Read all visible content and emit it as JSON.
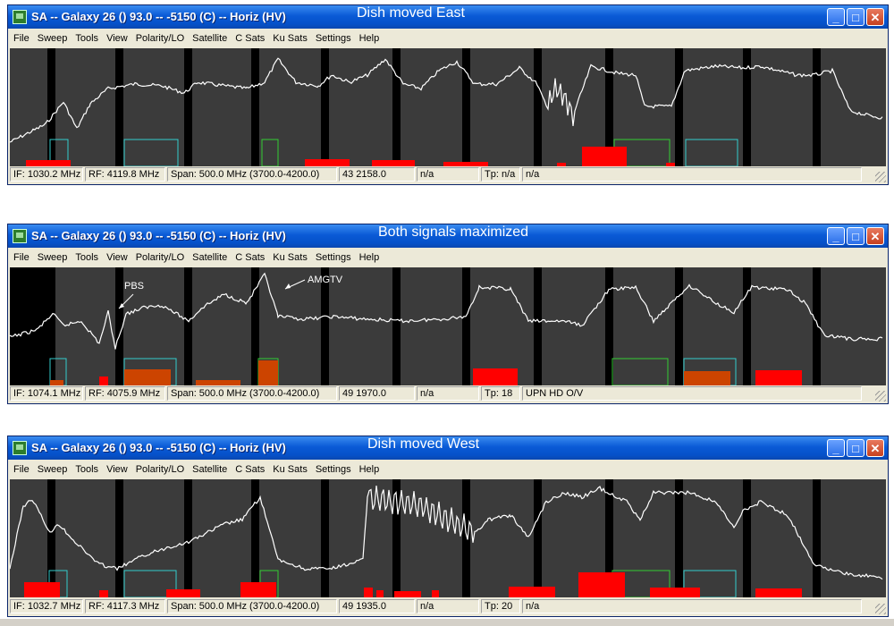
{
  "windows": [
    {
      "title": "SA -- Galaxy 26 () 93.0 -- -5150 (C) -- Horiz (HV)",
      "caption": "Dish moved East",
      "menu": [
        "File",
        "Sweep",
        "Tools",
        "View",
        "Polarity/LO",
        "Satellite",
        "C Sats",
        "Ku Sats",
        "Settings",
        "Help"
      ],
      "status": [
        "IF: 1030.2 MHz",
        "RF: 4119.8 MHz",
        "Span: 500.0 MHz (3700.0-4200.0)",
        "43 2158.0",
        "n/a",
        "Tp: n/a",
        "n/a"
      ],
      "annotations": []
    },
    {
      "title": "SA -- Galaxy 26 () 93.0 -- -5150 (C) -- Horiz (HV)",
      "caption": "Both signals maximized",
      "menu": [
        "File",
        "Sweep",
        "Tools",
        "View",
        "Polarity/LO",
        "Satellite",
        "C Sats",
        "Ku Sats",
        "Settings",
        "Help"
      ],
      "status": [
        "IF: 1074.1 MHz",
        "RF: 4075.9 MHz",
        "Span: 500.0 MHz (3700.0-4200.0)",
        "49 1970.0",
        "n/a",
        "Tp: 18",
        "UPN HD O/V"
      ],
      "annotations": [
        "PBS",
        "AMGTV"
      ]
    },
    {
      "title": "SA -- Galaxy 26 () 93.0 -- -5150 (C) -- Horiz (HV)",
      "caption": "Dish moved West",
      "menu": [
        "File",
        "Sweep",
        "Tools",
        "View",
        "Polarity/LO",
        "Satellite",
        "C Sats",
        "Ku Sats",
        "Settings",
        "Help"
      ],
      "status": [
        "IF: 1032.7 MHz",
        "RF: 4117.3 MHz",
        "Span: 500.0 MHz (3700.0-4200.0)",
        "49 1935.0",
        "n/a",
        "Tp: 20",
        "n/a"
      ],
      "annotations": []
    }
  ],
  "colors": {
    "plot_bg": "#3b3b3b",
    "trace": "#ffffff",
    "bar_strong": "#ff0000",
    "bar_medium": "#cc4400",
    "box_cyan": "#33cccc",
    "box_green": "#33cc33"
  }
}
